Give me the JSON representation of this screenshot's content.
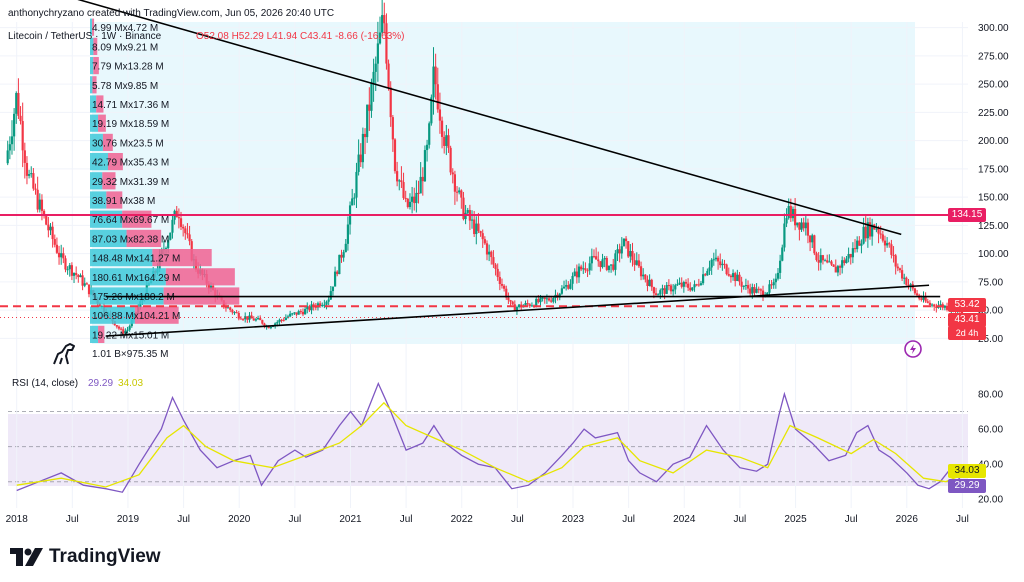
{
  "watermark": "anthonychryzano created with TradingView.com, Jun 05, 2026 20:40 UTC",
  "symbol": {
    "name": "Litecoin / TetherUS · 1W · Binance",
    "ohlc": "O52.08 H52.29 L41.94 C43.41 -8.66 (-16.63%)"
  },
  "price_badges": {
    "resistance": "134.15",
    "support": "53.42",
    "last": "43.41",
    "countdown": "2d 4h"
  },
  "rsi": {
    "label": "RSI (14, close)",
    "value": "29.29",
    "ma": "34.03"
  },
  "brand": "TradingView",
  "colors": {
    "candle_up": "#089981",
    "candle_down": "#f23645",
    "resistance": "#e91e63",
    "support": "#f23645",
    "trend": "#000000",
    "rsi": "#7e57c2",
    "rsi_ma": "#e6e600",
    "vp_up": "#3ec9d9",
    "vp_down": "#f06292"
  },
  "chart_data": [
    {
      "type": "candlestick",
      "title": "Litecoin / TetherUS",
      "y_ticks": [
        "300.00",
        "275.00",
        "250.00",
        "225.00",
        "200.00",
        "175.00",
        "150.00",
        "125.00",
        "100.00",
        "75.00",
        "50.00",
        "25.00"
      ],
      "x_ticks": [
        "2018",
        "Jul",
        "2019",
        "Jul",
        "2020",
        "Jul",
        "2021",
        "Jul",
        "2022",
        "Jul",
        "2023",
        "Jul",
        "2024",
        "Jul",
        "2025",
        "Jul",
        "2026",
        "Jul"
      ],
      "x_range": [
        2017.85,
        2026.55
      ],
      "y_range": [
        20,
        305
      ],
      "price_path": [
        [
          2017.9,
          180
        ],
        [
          2018.0,
          240
        ],
        [
          2018.1,
          170
        ],
        [
          2018.25,
          130
        ],
        [
          2018.4,
          95
        ],
        [
          2018.55,
          80
        ],
        [
          2018.75,
          55
        ],
        [
          2018.95,
          30
        ],
        [
          2019.0,
          33
        ],
        [
          2019.25,
          85
        ],
        [
          2019.45,
          140
        ],
        [
          2019.6,
          90
        ],
        [
          2019.85,
          55
        ],
        [
          2020.0,
          45
        ],
        [
          2020.2,
          40
        ],
        [
          2020.25,
          35
        ],
        [
          2020.45,
          45
        ],
        [
          2020.6,
          50
        ],
        [
          2020.8,
          60
        ],
        [
          2020.95,
          110
        ],
        [
          2021.15,
          220
        ],
        [
          2021.3,
          310
        ],
        [
          2021.4,
          180
        ],
        [
          2021.5,
          140
        ],
        [
          2021.6,
          150
        ],
        [
          2021.7,
          195
        ],
        [
          2021.75,
          260
        ],
        [
          2021.85,
          200
        ],
        [
          2022.0,
          140
        ],
        [
          2022.2,
          110
        ],
        [
          2022.35,
          75
        ],
        [
          2022.45,
          52
        ],
        [
          2022.6,
          55
        ],
        [
          2022.8,
          60
        ],
        [
          2022.95,
          72
        ],
        [
          2023.05,
          85
        ],
        [
          2023.2,
          95
        ],
        [
          2023.35,
          88
        ],
        [
          2023.45,
          110
        ],
        [
          2023.6,
          85
        ],
        [
          2023.75,
          65
        ],
        [
          2023.95,
          72
        ],
        [
          2024.1,
          70
        ],
        [
          2024.25,
          95
        ],
        [
          2024.4,
          85
        ],
        [
          2024.55,
          70
        ],
        [
          2024.7,
          65
        ],
        [
          2024.82,
          72
        ],
        [
          2024.88,
          110
        ],
        [
          2024.92,
          140
        ],
        [
          2025.0,
          130
        ],
        [
          2025.1,
          125
        ],
        [
          2025.2,
          95
        ],
        [
          2025.35,
          85
        ],
        [
          2025.5,
          100
        ],
        [
          2025.62,
          120
        ],
        [
          2025.72,
          125
        ],
        [
          2025.82,
          110
        ],
        [
          2025.9,
          90
        ],
        [
          2026.0,
          75
        ],
        [
          2026.1,
          62
        ],
        [
          2026.2,
          55
        ],
        [
          2026.3,
          54
        ],
        [
          2026.4,
          52
        ],
        [
          2026.45,
          52
        ],
        [
          2026.5,
          43.41
        ]
      ],
      "support_level": 53.42,
      "resistance_level": 134.15,
      "last_price": 43.41,
      "trendlines": [
        {
          "from": [
            2018.55,
            325
          ],
          "to": [
            2025.95,
            117
          ]
        },
        {
          "from": [
            2018.8,
            27
          ],
          "to": [
            2026.2,
            72
          ]
        },
        {
          "from": [
            2018.8,
            62
          ],
          "to": [
            2026.3,
            62
          ]
        }
      ],
      "volume_profile": [
        {
          "up": "19.22 M",
          "down": "15.01 M",
          "up_v": 19.22,
          "down_v": 15.01
        },
        {
          "up": "106.88 M",
          "down": "104.21 M",
          "up_v": 106.88,
          "down_v": 104.21
        },
        {
          "up": "175.26 M",
          "down": "180.2 M",
          "up_v": 175.26,
          "down_v": 180.2
        },
        {
          "up": "180.61 M",
          "down": "164.29 M",
          "up_v": 180.61,
          "down_v": 164.29
        },
        {
          "up": "148.48 M",
          "down": "141.27 M",
          "up_v": 148.48,
          "down_v": 141.27
        },
        {
          "up": "87.03 M",
          "down": "82.38 M",
          "up_v": 87.03,
          "down_v": 82.38
        },
        {
          "up": "76.64 M",
          "down": "69.67 M",
          "up_v": 76.64,
          "down_v": 69.67
        },
        {
          "up": "38.91 M",
          "down": "38 M",
          "up_v": 38.91,
          "down_v": 38
        },
        {
          "up": "29.32 M",
          "down": "31.39 M",
          "up_v": 29.32,
          "down_v": 31.39
        },
        {
          "up": "42.79 M",
          "down": "35.43 M",
          "up_v": 42.79,
          "down_v": 35.43
        },
        {
          "up": "30.76 M",
          "down": "23.5 M",
          "up_v": 30.76,
          "down_v": 23.5
        },
        {
          "up": "19.19 M",
          "down": "18.59 M",
          "up_v": 19.19,
          "down_v": 18.59
        },
        {
          "up": "14.71 M",
          "down": "17.36 M",
          "up_v": 14.71,
          "down_v": 17.36
        },
        {
          "up": "5.78 M",
          "down": "9.85 M",
          "up_v": 5.78,
          "down_v": 9.85
        },
        {
          "up": "7.79 M",
          "down": "13.28 M",
          "up_v": 7.79,
          "down_v": 13.28
        },
        {
          "up": "8.09 M",
          "down": "9.21 M",
          "up_v": 8.09,
          "down_v": 9.21
        },
        {
          "up": "4.99 M",
          "down": "4.72 M",
          "up_v": 4.99,
          "down_v": 4.72
        }
      ],
      "volume_total": "1.01 B×975.35 M",
      "vp_separator": "x"
    },
    {
      "type": "line",
      "title": "RSI (14, close)",
      "y_ticks": [
        "80.00",
        "60.00",
        "40.00",
        "20.00"
      ],
      "y_range": [
        15,
        88
      ],
      "bands": [
        30,
        50,
        70
      ],
      "series": [
        {
          "name": "RSI",
          "points": [
            [
              2018.0,
              25
            ],
            [
              2018.2,
              30
            ],
            [
              2018.4,
              35
            ],
            [
              2018.6,
              28
            ],
            [
              2018.8,
              26
            ],
            [
              2018.95,
              24
            ],
            [
              2019.1,
              40
            ],
            [
              2019.3,
              60
            ],
            [
              2019.4,
              78
            ],
            [
              2019.5,
              65
            ],
            [
              2019.65,
              48
            ],
            [
              2019.8,
              38
            ],
            [
              2019.95,
              42
            ],
            [
              2020.1,
              45
            ],
            [
              2020.2,
              28
            ],
            [
              2020.35,
              42
            ],
            [
              2020.5,
              48
            ],
            [
              2020.6,
              44
            ],
            [
              2020.75,
              48
            ],
            [
              2020.9,
              62
            ],
            [
              2021.0,
              70
            ],
            [
              2021.1,
              62
            ],
            [
              2021.25,
              86
            ],
            [
              2021.35,
              72
            ],
            [
              2021.5,
              48
            ],
            [
              2021.65,
              52
            ],
            [
              2021.75,
              62
            ],
            [
              2021.85,
              52
            ],
            [
              2022.0,
              45
            ],
            [
              2022.15,
              40
            ],
            [
              2022.3,
              38
            ],
            [
              2022.45,
              26
            ],
            [
              2022.6,
              28
            ],
            [
              2022.75,
              35
            ],
            [
              2022.9,
              45
            ],
            [
              2023.0,
              52
            ],
            [
              2023.1,
              60
            ],
            [
              2023.2,
              55
            ],
            [
              2023.4,
              58
            ],
            [
              2023.5,
              42
            ],
            [
              2023.6,
              35
            ],
            [
              2023.75,
              30
            ],
            [
              2023.9,
              40
            ],
            [
              2024.05,
              44
            ],
            [
              2024.2,
              62
            ],
            [
              2024.35,
              48
            ],
            [
              2024.5,
              38
            ],
            [
              2024.65,
              36
            ],
            [
              2024.75,
              40
            ],
            [
              2024.85,
              68
            ],
            [
              2024.9,
              80
            ],
            [
              2025.0,
              60
            ],
            [
              2025.15,
              52
            ],
            [
              2025.3,
              42
            ],
            [
              2025.45,
              45
            ],
            [
              2025.55,
              58
            ],
            [
              2025.65,
              62
            ],
            [
              2025.75,
              48
            ],
            [
              2025.85,
              44
            ],
            [
              2026.0,
              35
            ],
            [
              2026.1,
              28
            ],
            [
              2026.2,
              26
            ],
            [
              2026.3,
              30
            ],
            [
              2026.4,
              38
            ],
            [
              2026.5,
              29.29
            ]
          ]
        },
        {
          "name": "RSI MA",
          "points": [
            [
              2018.0,
              28
            ],
            [
              2018.4,
              32
            ],
            [
              2018.8,
              27
            ],
            [
              2019.1,
              34
            ],
            [
              2019.35,
              55
            ],
            [
              2019.5,
              62
            ],
            [
              2019.7,
              50
            ],
            [
              2019.95,
              42
            ],
            [
              2020.3,
              38
            ],
            [
              2020.6,
              45
            ],
            [
              2020.9,
              52
            ],
            [
              2021.1,
              62
            ],
            [
              2021.3,
              75
            ],
            [
              2021.5,
              62
            ],
            [
              2021.75,
              55
            ],
            [
              2022.0,
              48
            ],
            [
              2022.3,
              38
            ],
            [
              2022.6,
              30
            ],
            [
              2022.9,
              38
            ],
            [
              2023.1,
              50
            ],
            [
              2023.4,
              55
            ],
            [
              2023.6,
              42
            ],
            [
              2023.9,
              35
            ],
            [
              2024.2,
              48
            ],
            [
              2024.5,
              44
            ],
            [
              2024.75,
              38
            ],
            [
              2024.95,
              62
            ],
            [
              2025.2,
              55
            ],
            [
              2025.5,
              46
            ],
            [
              2025.7,
              54
            ],
            [
              2025.9,
              46
            ],
            [
              2026.15,
              32
            ],
            [
              2026.35,
              30
            ],
            [
              2026.5,
              34.03
            ]
          ]
        }
      ],
      "last_values": [
        "29.29",
        "34.03"
      ]
    }
  ]
}
